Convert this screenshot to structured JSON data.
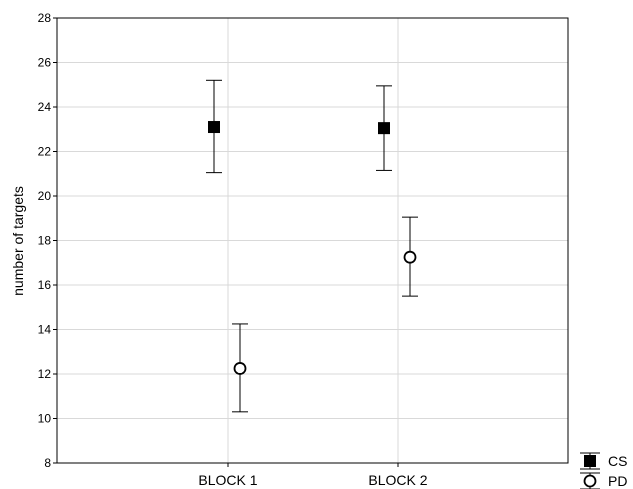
{
  "chart_data": {
    "type": "scatter",
    "ylabel": "number of targets",
    "xlabel": "",
    "ylim": [
      8,
      28
    ],
    "yticks": [
      8,
      10,
      12,
      14,
      16,
      18,
      20,
      22,
      24,
      26,
      28
    ],
    "categories": [
      "BLOCK 1",
      "BLOCK 2"
    ],
    "grid": true,
    "legend_position": "bottom-right",
    "series": [
      {
        "name": "CS",
        "marker": "filled-square",
        "values": [
          23.1,
          23.05
        ],
        "error_low": [
          21.05,
          21.15
        ],
        "error_high": [
          25.2,
          24.95
        ]
      },
      {
        "name": "PD",
        "marker": "open-circle",
        "values": [
          12.25,
          17.25
        ],
        "error_low": [
          10.3,
          15.5
        ],
        "error_high": [
          14.25,
          19.05
        ]
      }
    ]
  }
}
